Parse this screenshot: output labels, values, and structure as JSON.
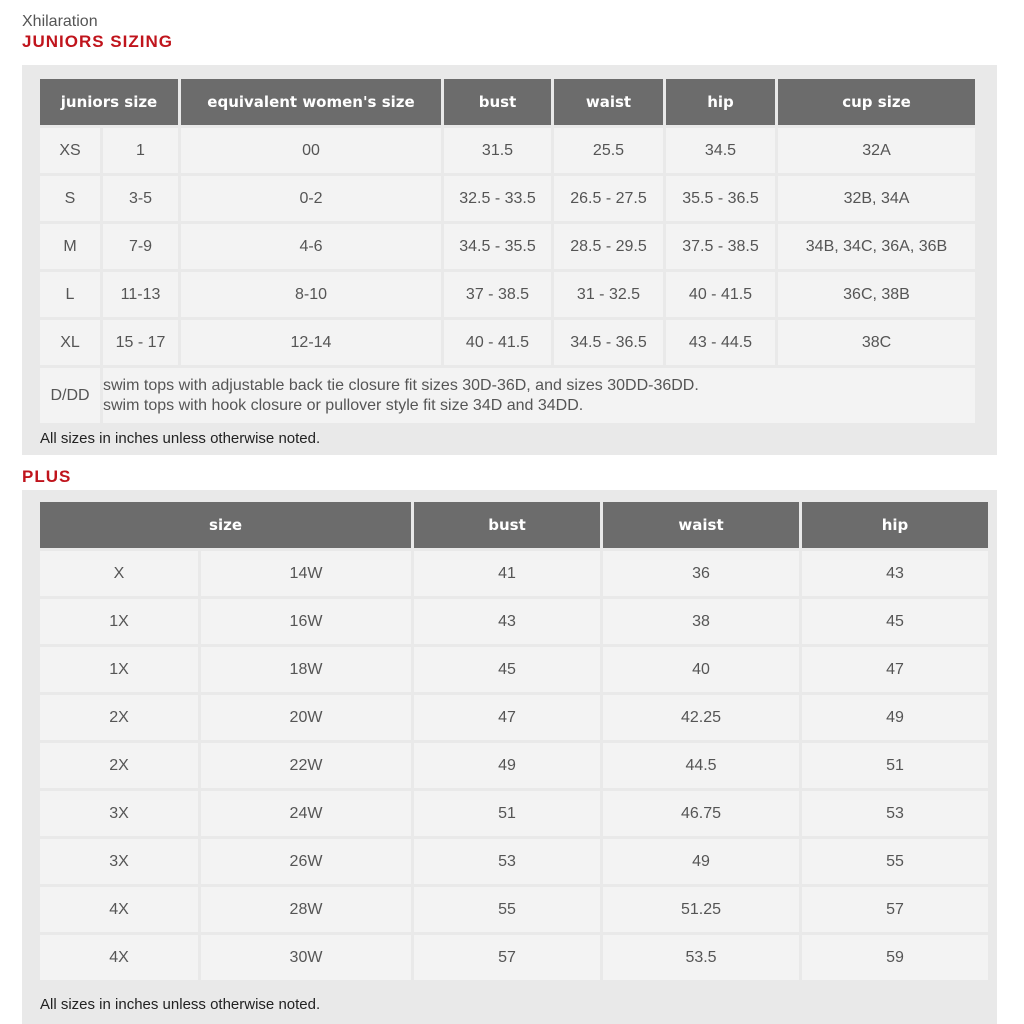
{
  "brand": "Xhilaration",
  "juniors": {
    "title": "JUNIORS SIZING",
    "headers": [
      "juniors size",
      "equivalent women's size",
      "bust",
      "waist",
      "hip",
      "cup size"
    ],
    "rows": [
      [
        "XS",
        "1",
        "00",
        "31.5",
        "25.5",
        "34.5",
        "32A"
      ],
      [
        "S",
        "3-5",
        "0-2",
        "32.5 - 33.5",
        "26.5 - 27.5",
        "35.5 - 36.5",
        "32B, 34A"
      ],
      [
        "M",
        "7-9",
        "4-6",
        "34.5 - 35.5",
        "28.5 - 29.5",
        "37.5 - 38.5",
        "34B, 34C, 36A, 36B"
      ],
      [
        "L",
        "11-13",
        "8-10",
        "37 - 38.5",
        "31 - 32.5",
        "40 - 41.5",
        "36C, 38B"
      ],
      [
        "XL",
        "15 - 17",
        "12-14",
        "40 - 41.5",
        "34.5 - 36.5",
        "43 - 44.5",
        "38C"
      ]
    ],
    "note_label": "D/DD",
    "note_lines": [
      "swim tops with adjustable back tie closure fit sizes 30D-36D, and sizes 30DD-36DD.",
      "swim tops with hook closure or pullover style fit size 34D and 34DD."
    ],
    "footer": "All sizes in inches unless otherwise noted."
  },
  "plus": {
    "title": "PLUS",
    "headers": [
      "size",
      "bust",
      "waist",
      "hip"
    ],
    "rows": [
      [
        "X",
        "14W",
        "41",
        "36",
        "43"
      ],
      [
        "1X",
        "16W",
        "43",
        "38",
        "45"
      ],
      [
        "1X",
        "18W",
        "45",
        "40",
        "47"
      ],
      [
        "2X",
        "20W",
        "47",
        "42.25",
        "49"
      ],
      [
        "2X",
        "22W",
        "49",
        "44.5",
        "51"
      ],
      [
        "3X",
        "24W",
        "51",
        "46.75",
        "53"
      ],
      [
        "3X",
        "26W",
        "53",
        "49",
        "55"
      ],
      [
        "4X",
        "28W",
        "55",
        "51.25",
        "57"
      ],
      [
        "4X",
        "30W",
        "57",
        "53.5",
        "59"
      ]
    ],
    "footer": "All sizes in inches unless otherwise noted."
  }
}
